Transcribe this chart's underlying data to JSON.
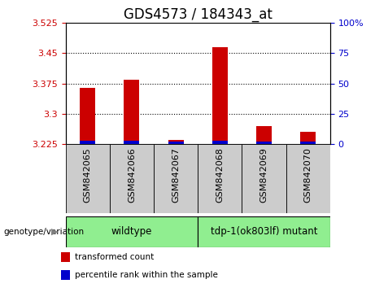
{
  "title": "GDS4573 / 184343_at",
  "samples": [
    "GSM842065",
    "GSM842066",
    "GSM842067",
    "GSM842068",
    "GSM842069",
    "GSM842070"
  ],
  "red_values": [
    3.365,
    3.385,
    3.235,
    3.465,
    3.27,
    3.255
  ],
  "blue_pct": [
    2.5,
    2.5,
    2.0,
    2.5,
    2.0,
    2.0
  ],
  "baseline": 3.225,
  "ylim_left": [
    3.225,
    3.525
  ],
  "ylim_right": [
    0,
    100
  ],
  "yticks_left": [
    3.225,
    3.3,
    3.375,
    3.45,
    3.525
  ],
  "yticks_right": [
    0,
    25,
    50,
    75,
    100
  ],
  "ytick_labels_right": [
    "0",
    "25",
    "50",
    "75",
    "100%"
  ],
  "groups": [
    {
      "label": "wildtype",
      "start": 0,
      "end": 2
    },
    {
      "label": "tdp-1(ok803lf) mutant",
      "start": 3,
      "end": 5
    }
  ],
  "group_color": "#90EE90",
  "group_label_header": "genotype/variation",
  "col_bg_color": "#cccccc",
  "red_color": "#cc0000",
  "blue_color": "#0000cc",
  "legend_items": [
    {
      "color": "#cc0000",
      "label": "transformed count"
    },
    {
      "color": "#0000cc",
      "label": "percentile rank within the sample"
    }
  ],
  "title_fontsize": 12,
  "tick_fontsize": 8,
  "sample_fontsize": 8
}
